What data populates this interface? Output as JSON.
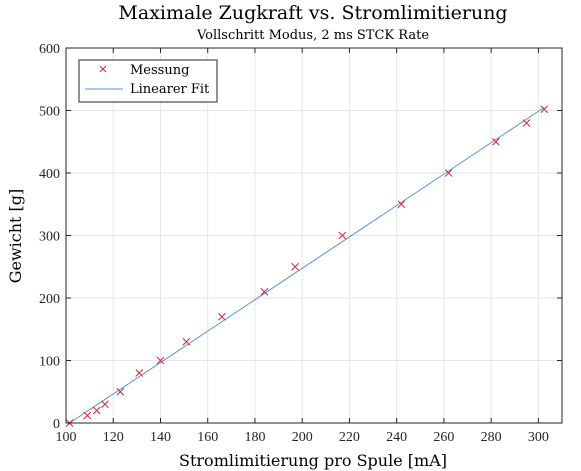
{
  "chart_data": {
    "type": "scatter",
    "title": "Maximale Zugkraft vs. Stromlimitierung",
    "subtitle": "Vollschritt Modus, 2 ms STCK Rate",
    "xlabel": "Stromlimitierung pro Spule [mA]",
    "ylabel": "Gewicht  [g]",
    "xlim": [
      100,
      310
    ],
    "ylim": [
      0,
      600
    ],
    "xticks": [
      100,
      120,
      140,
      160,
      180,
      200,
      220,
      240,
      260,
      280,
      300
    ],
    "yticks": [
      0,
      100,
      200,
      300,
      400,
      500,
      600
    ],
    "grid": true,
    "legend_position": "top-left",
    "series": [
      {
        "name": "Messung",
        "kind": "marker",
        "marker": "x",
        "color": "#d7263d",
        "x": [
          101.5,
          109,
          113,
          116.5,
          123,
          131,
          140,
          151,
          166,
          184,
          197,
          217,
          242,
          262,
          282,
          295,
          302.5
        ],
        "y": [
          0,
          12,
          20,
          30,
          50,
          80,
          100,
          130,
          170,
          210,
          250,
          300,
          350,
          400,
          450,
          480,
          502
        ]
      },
      {
        "name": "Linearer Fit",
        "kind": "line",
        "color": "#5b8fd6",
        "x": [
          101.5,
          302.5
        ],
        "y": [
          0,
          505
        ]
      }
    ]
  }
}
